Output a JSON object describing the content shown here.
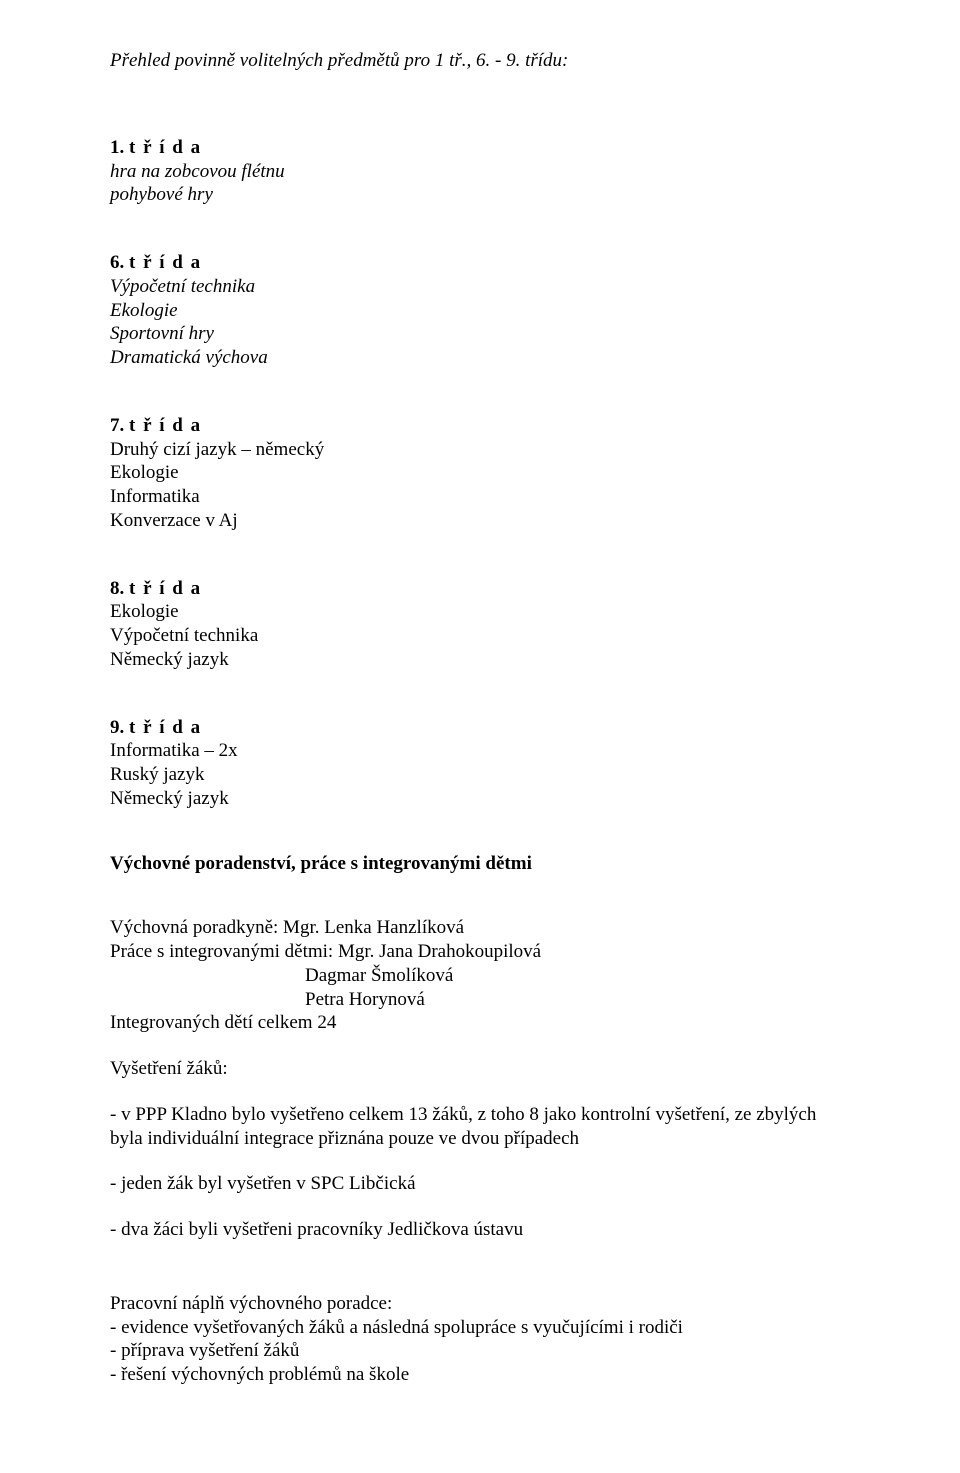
{
  "title": "Přehled povinně volitelných předmětů pro 1 tř., 6. - 9. třídu:",
  "grades": [
    {
      "heading_num": "1.",
      "heading_word": "t ř í d a",
      "items": [
        {
          "text": "hra na zobcovou flétnu",
          "italic": true
        },
        {
          "text": "pohybové hry",
          "italic": true
        }
      ]
    },
    {
      "heading_num": "6.",
      "heading_word": "t ř í d a",
      "items": [
        {
          "text": "Výpočetní technika",
          "italic": true
        },
        {
          "text": "Ekologie",
          "italic": true
        },
        {
          "text": "Sportovní hry",
          "italic": true
        },
        {
          "text": "Dramatická výchova",
          "italic": true
        }
      ]
    },
    {
      "heading_num": "7.",
      "heading_word": "t ř í d a",
      "items": [
        {
          "text": "Druhý cizí jazyk – německý",
          "italic": false
        },
        {
          "text": "Ekologie",
          "italic": false
        },
        {
          "text": "Informatika",
          "italic": false
        },
        {
          "text": "Konverzace v Aj",
          "italic": false
        }
      ]
    },
    {
      "heading_num": "8.",
      "heading_word": "t ř í d a",
      "items": [
        {
          "text": "Ekologie",
          "italic": false
        },
        {
          "text": "Výpočetní technika",
          "italic": false
        },
        {
          "text": "Německý jazyk",
          "italic": false
        }
      ]
    },
    {
      "heading_num": "9.",
      "heading_word": "t ř í d a",
      "items": [
        {
          "text": "Informatika – 2x",
          "italic": false
        },
        {
          "text": "Ruský jazyk",
          "italic": false
        },
        {
          "text": "Německý jazyk",
          "italic": false
        }
      ]
    }
  ],
  "counseling": {
    "heading": "Výchovné poradenství, práce s integrovanými dětmi",
    "advisor_line": "Výchovná poradkyně: Mgr. Lenka Hanzlíková",
    "work_lead": "Práce s integrovanými dětmi: Mgr. Jana Drahokoupilová",
    "work_sub1": "Dagmar Šmolíková",
    "work_sub2": "Petra Horynová",
    "total_line": "Integrovaných dětí celkem 24",
    "exam_heading": "Vyšetření žáků:",
    "bullet1": "- v PPP Kladno bylo vyšetřeno celkem 13 žáků, z toho 8 jako kontrolní vyšetření, ze zbylých byla individuální integrace přiznána pouze ve dvou případech",
    "bullet2": "- jeden žák byl vyšetřen v SPC Libčická",
    "bullet3": "- dva žáci byli vyšetřeni pracovníky Jedličkova ústavu",
    "workload_heading": "Pracovní náplň výchovného poradce:",
    "workload1": "- evidence vyšetřovaných žáků a následná spolupráce s vyučujícími i rodiči",
    "workload2": "- příprava vyšetření žáků",
    "workload3": "- řešení výchovných problémů na škole"
  }
}
